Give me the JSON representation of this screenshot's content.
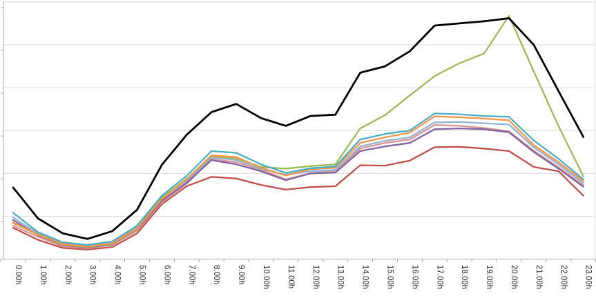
{
  "chart_data": {
    "type": "line",
    "title": "",
    "xlabel": "",
    "ylabel": "",
    "legend_position": "none",
    "grid": true,
    "ylim": [
      0,
      6
    ],
    "y_gridline_step": 1,
    "y_tick_labels_visible": false,
    "x_labels": [
      "0.00h",
      "1.00h",
      "2.00h",
      "3.00h",
      "4.00h",
      "5.00h",
      "6.00h",
      "7.00h",
      "8.00h",
      "9.00h",
      "10.00h",
      "11.00h",
      "12.00h",
      "13.00h",
      "14.00h",
      "15.00h",
      "16.00h",
      "17.00h",
      "18.00h",
      "19.00h",
      "20.00h",
      "21.00h",
      "22.00h",
      "23.00h"
    ],
    "series": [
      {
        "name": "red",
        "color": "#C0504D",
        "line_width": 2.3,
        "values": [
          0.73,
          0.45,
          0.26,
          0.22,
          0.28,
          0.6,
          1.28,
          1.7,
          1.92,
          1.88,
          1.73,
          1.62,
          1.68,
          1.7,
          2.19,
          2.18,
          2.3,
          2.61,
          2.62,
          2.58,
          2.52,
          2.15,
          2.05,
          1.48
        ]
      },
      {
        "name": "pink",
        "color": "#D99694",
        "line_width": 2.3,
        "values": [
          0.78,
          0.52,
          0.3,
          0.25,
          0.33,
          0.66,
          1.33,
          1.76,
          2.33,
          2.26,
          2.08,
          1.86,
          2.0,
          2.05,
          2.58,
          2.71,
          2.79,
          3.13,
          3.11,
          3.06,
          2.98,
          2.53,
          2.14,
          1.72
        ]
      },
      {
        "name": "light-blue",
        "color": "#95B3D7",
        "line_width": 2.3,
        "values": [
          0.97,
          0.6,
          0.37,
          0.31,
          0.39,
          0.74,
          1.42,
          1.82,
          2.37,
          2.31,
          2.1,
          1.97,
          2.05,
          2.08,
          2.63,
          2.76,
          2.84,
          3.19,
          3.2,
          3.17,
          3.14,
          2.61,
          2.21,
          1.77
        ]
      },
      {
        "name": "purple",
        "color": "#8064A2",
        "line_width": 2.3,
        "values": [
          0.91,
          0.56,
          0.33,
          0.27,
          0.35,
          0.7,
          1.36,
          1.78,
          2.31,
          2.21,
          2.05,
          1.84,
          2.0,
          2.02,
          2.52,
          2.63,
          2.71,
          3.03,
          3.05,
          3.03,
          2.96,
          2.5,
          2.11,
          1.69
        ]
      },
      {
        "name": "green",
        "color": "#9BBB59",
        "line_width": 2.3,
        "values": [
          0.84,
          0.57,
          0.34,
          0.28,
          0.36,
          0.71,
          1.44,
          1.87,
          2.4,
          2.35,
          2.15,
          2.11,
          2.17,
          2.21,
          3.05,
          3.36,
          3.82,
          4.27,
          4.57,
          4.8,
          5.68,
          4.38,
          3.1,
          1.93
        ]
      },
      {
        "name": "orange",
        "color": "#F79646",
        "line_width": 2.3,
        "values": [
          0.85,
          0.58,
          0.35,
          0.29,
          0.37,
          0.72,
          1.4,
          1.86,
          2.42,
          2.38,
          2.13,
          1.95,
          2.1,
          2.13,
          2.71,
          2.84,
          2.95,
          3.33,
          3.31,
          3.28,
          3.24,
          2.66,
          2.26,
          1.82
        ]
      },
      {
        "name": "cyan",
        "color": "#4BACC6",
        "line_width": 2.3,
        "values": [
          1.08,
          0.63,
          0.39,
          0.33,
          0.41,
          0.78,
          1.48,
          1.94,
          2.52,
          2.48,
          2.21,
          2.01,
          2.12,
          2.16,
          2.79,
          2.92,
          3.0,
          3.4,
          3.38,
          3.34,
          3.32,
          2.77,
          2.34,
          1.86
        ]
      },
      {
        "name": "black",
        "color": "#000000",
        "line_width": 2.8,
        "values": [
          1.67,
          0.95,
          0.6,
          0.47,
          0.65,
          1.15,
          2.2,
          2.9,
          3.43,
          3.62,
          3.29,
          3.11,
          3.34,
          3.37,
          4.35,
          4.5,
          4.85,
          5.45,
          5.5,
          5.55,
          5.62,
          5.0,
          3.92,
          2.85
        ]
      }
    ],
    "style": {
      "background": "#FFFFFF",
      "gridline_color": "#D9D9D9",
      "axis_color": "#A6A6A6",
      "tick_color": "#A6A6A6",
      "label_color": "#262626"
    }
  }
}
